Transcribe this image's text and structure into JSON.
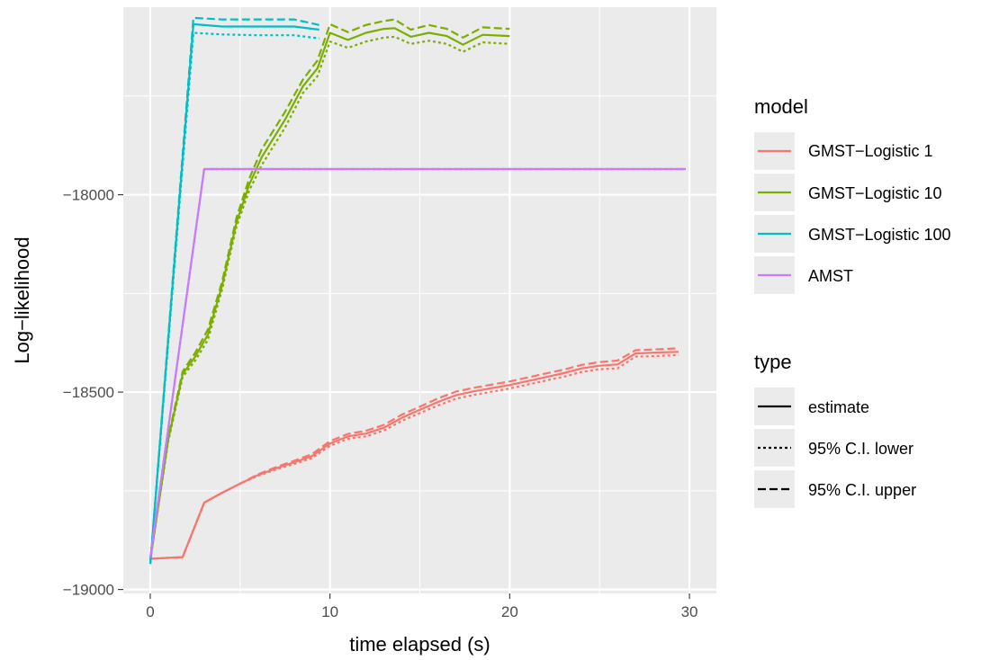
{
  "chart_data": {
    "type": "line",
    "xlabel": "time elapsed (s)",
    "ylabel": "Log−likelihood",
    "xlim": [
      -1.5,
      31.5
    ],
    "ylim": [
      -19010,
      -17525
    ],
    "xticks": [
      0,
      10,
      20,
      30
    ],
    "yticks": [
      -19000,
      -18500,
      -18000
    ],
    "xtick_labels": [
      "0",
      "10",
      "20",
      "30"
    ],
    "ytick_labels": [
      "−19000",
      "−18500",
      "−18000"
    ],
    "grid": true,
    "legend_placement": "right",
    "color_legend": {
      "title": "model",
      "entries": [
        "GMST−Logistic 1",
        "GMST−Logistic 10",
        "GMST−Logistic 100",
        "AMST"
      ]
    },
    "linetype_legend": {
      "title": "type",
      "entries": [
        "estimate",
        "95% C.I. lower",
        "95% C.I. upper"
      ]
    },
    "series": [
      {
        "model": "GMST−Logistic 1",
        "color": "#F8766D",
        "estimate": [
          [
            0,
            -18922
          ],
          [
            1.8,
            -18918
          ],
          [
            3,
            -18780
          ],
          [
            4,
            -18755
          ],
          [
            5,
            -18732
          ],
          [
            6,
            -18710
          ],
          [
            7,
            -18693
          ],
          [
            8,
            -18678
          ],
          [
            9,
            -18662
          ],
          [
            10,
            -18630
          ],
          [
            11,
            -18612
          ],
          [
            12,
            -18605
          ],
          [
            13,
            -18590
          ],
          [
            14,
            -18565
          ],
          [
            15,
            -18545
          ],
          [
            16,
            -18525
          ],
          [
            17,
            -18508
          ],
          [
            18,
            -18498
          ],
          [
            19,
            -18490
          ],
          [
            20,
            -18482
          ],
          [
            21,
            -18472
          ],
          [
            22,
            -18462
          ],
          [
            23,
            -18452
          ],
          [
            24,
            -18440
          ],
          [
            25,
            -18433
          ],
          [
            26,
            -18430
          ],
          [
            27,
            -18402
          ],
          [
            28,
            -18400
          ],
          [
            29.4,
            -18398
          ]
        ],
        "lower": [
          [
            0,
            -18922
          ],
          [
            1.8,
            -18918
          ],
          [
            3,
            -18780
          ],
          [
            4,
            -18755
          ],
          [
            5,
            -18732
          ],
          [
            6,
            -18712
          ],
          [
            7,
            -18696
          ],
          [
            8,
            -18682
          ],
          [
            9,
            -18667
          ],
          [
            10,
            -18636
          ],
          [
            11,
            -18618
          ],
          [
            12,
            -18612
          ],
          [
            13,
            -18597
          ],
          [
            14,
            -18573
          ],
          [
            15,
            -18553
          ],
          [
            16,
            -18534
          ],
          [
            17,
            -18517
          ],
          [
            18,
            -18507
          ],
          [
            19,
            -18499
          ],
          [
            20,
            -18491
          ],
          [
            21,
            -18481
          ],
          [
            22,
            -18471
          ],
          [
            23,
            -18461
          ],
          [
            24,
            -18449
          ],
          [
            25,
            -18442
          ],
          [
            26,
            -18440
          ],
          [
            27,
            -18410
          ],
          [
            28,
            -18409
          ],
          [
            29.4,
            -18406
          ]
        ],
        "upper": [
          [
            0,
            -18922
          ],
          [
            1.8,
            -18918
          ],
          [
            3,
            -18780
          ],
          [
            4,
            -18755
          ],
          [
            5,
            -18732
          ],
          [
            6,
            -18708
          ],
          [
            7,
            -18690
          ],
          [
            8,
            -18674
          ],
          [
            9,
            -18657
          ],
          [
            10,
            -18624
          ],
          [
            11,
            -18606
          ],
          [
            12,
            -18598
          ],
          [
            13,
            -18583
          ],
          [
            14,
            -18557
          ],
          [
            15,
            -18537
          ],
          [
            16,
            -18516
          ],
          [
            17,
            -18499
          ],
          [
            18,
            -18489
          ],
          [
            19,
            -18481
          ],
          [
            20,
            -18473
          ],
          [
            21,
            -18463
          ],
          [
            22,
            -18453
          ],
          [
            23,
            -18443
          ],
          [
            24,
            -18431
          ],
          [
            25,
            -18424
          ],
          [
            26,
            -18420
          ],
          [
            27,
            -18394
          ],
          [
            28,
            -18392
          ],
          [
            29.4,
            -18389
          ]
        ]
      },
      {
        "model": "GMST−Logistic 10",
        "color": "#7CAE00",
        "estimate": [
          [
            0,
            -18925
          ],
          [
            1,
            -18620
          ],
          [
            1.8,
            -18455
          ],
          [
            2.5,
            -18410
          ],
          [
            3.2,
            -18355
          ],
          [
            4,
            -18230
          ],
          [
            4.8,
            -18070
          ],
          [
            5.5,
            -17975
          ],
          [
            6.2,
            -17905
          ],
          [
            7.5,
            -17810
          ],
          [
            8.5,
            -17725
          ],
          [
            9.3,
            -17680
          ],
          [
            10,
            -17590
          ],
          [
            11,
            -17608
          ],
          [
            12,
            -17590
          ],
          [
            13,
            -17580
          ],
          [
            13.6,
            -17578
          ],
          [
            14.5,
            -17600
          ],
          [
            15.5,
            -17590
          ],
          [
            16.5,
            -17598
          ],
          [
            17.4,
            -17620
          ],
          [
            18.5,
            -17595
          ],
          [
            20,
            -17598
          ]
        ],
        "lower": [
          [
            0,
            -18925
          ],
          [
            1,
            -18625
          ],
          [
            1.8,
            -18462
          ],
          [
            2.5,
            -18420
          ],
          [
            3.2,
            -18368
          ],
          [
            4,
            -18240
          ],
          [
            4.8,
            -18080
          ],
          [
            5.5,
            -17990
          ],
          [
            6.2,
            -17925
          ],
          [
            7.5,
            -17830
          ],
          [
            8.5,
            -17742
          ],
          [
            9.3,
            -17700
          ],
          [
            10,
            -17612
          ],
          [
            11,
            -17628
          ],
          [
            12,
            -17612
          ],
          [
            13,
            -17602
          ],
          [
            13.6,
            -17600
          ],
          [
            14.5,
            -17618
          ],
          [
            15.5,
            -17610
          ],
          [
            16.5,
            -17618
          ],
          [
            17.4,
            -17638
          ],
          [
            18.5,
            -17614
          ],
          [
            20,
            -17618
          ]
        ],
        "upper": [
          [
            0,
            -18925
          ],
          [
            1,
            -18615
          ],
          [
            1.8,
            -18448
          ],
          [
            2.5,
            -18400
          ],
          [
            3.2,
            -18342
          ],
          [
            4,
            -18220
          ],
          [
            4.8,
            -18058
          ],
          [
            5.5,
            -17960
          ],
          [
            6.2,
            -17885
          ],
          [
            7.5,
            -17790
          ],
          [
            8.5,
            -17708
          ],
          [
            9.3,
            -17660
          ],
          [
            10,
            -17568
          ],
          [
            11,
            -17588
          ],
          [
            12,
            -17570
          ],
          [
            13,
            -17560
          ],
          [
            13.6,
            -17556
          ],
          [
            14.5,
            -17582
          ],
          [
            15.5,
            -17570
          ],
          [
            16.5,
            -17580
          ],
          [
            17.4,
            -17602
          ],
          [
            18.5,
            -17576
          ],
          [
            20,
            -17580
          ]
        ]
      },
      {
        "model": "GMST−Logistic 100",
        "color": "#00BFC4",
        "estimate": [
          [
            0,
            -18935
          ],
          [
            2.4,
            -17568
          ],
          [
            4,
            -17574
          ],
          [
            6,
            -17574
          ],
          [
            8,
            -17574
          ],
          [
            9.4,
            -17582
          ]
        ],
        "lower": [
          [
            0,
            -18935
          ],
          [
            2.4,
            -17590
          ],
          [
            4,
            -17594
          ],
          [
            6,
            -17596
          ],
          [
            8,
            -17596
          ],
          [
            9.4,
            -17604
          ]
        ],
        "upper": [
          [
            0,
            -18935
          ],
          [
            2.4,
            -17552
          ],
          [
            4,
            -17556
          ],
          [
            6,
            -17556
          ],
          [
            8,
            -17556
          ],
          [
            9.4,
            -17570
          ]
        ]
      },
      {
        "model": "AMST",
        "color": "#C77CFF",
        "estimate": [
          [
            0,
            -18920
          ],
          [
            3,
            -17935
          ],
          [
            29.8,
            -17935
          ]
        ],
        "lower": [
          [
            0,
            -18920
          ],
          [
            3,
            -17935
          ],
          [
            29.8,
            -17935
          ]
        ],
        "upper": [
          [
            0,
            -18920
          ],
          [
            3,
            -17935
          ],
          [
            29.8,
            -17935
          ]
        ]
      }
    ]
  }
}
